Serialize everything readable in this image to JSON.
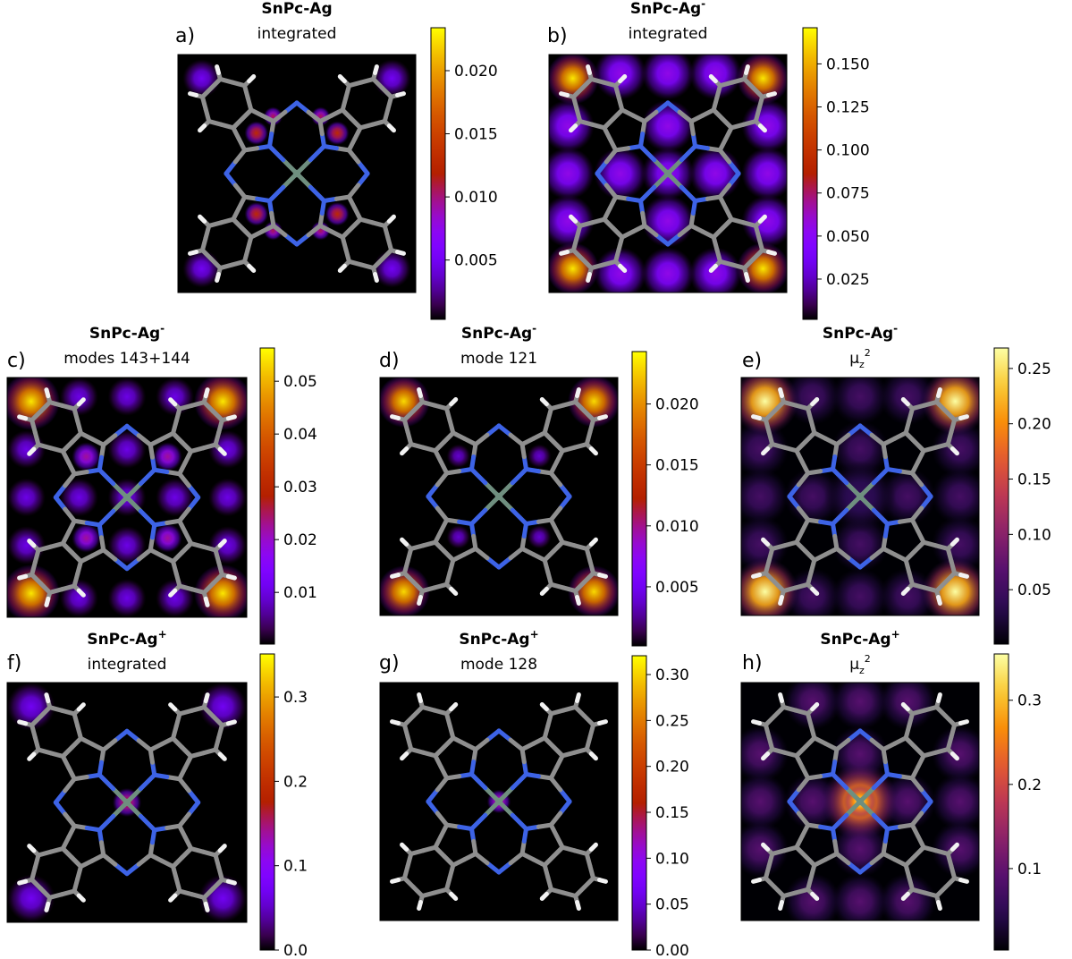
{
  "chart_data": [
    {
      "type": "heatmap",
      "panel_label": "a)",
      "title": "SnPc-Ag",
      "subtitle": "integrated",
      "colormap": "gnuplot",
      "clim": [
        0.0003,
        0.0234
      ],
      "cticks": [
        {
          "value": 0.02,
          "label": "0.020"
        },
        0.015,
        {
          "value": 0.01,
          "label": "0.010"
        },
        0.005
      ]
    },
    {
      "type": "heatmap",
      "panel_label": "b)",
      "title": "SnPc-Ag",
      "title_sup": "-",
      "subtitle": "integrated",
      "colormap": "gnuplot",
      "clim": [
        0.0016,
        0.171
      ],
      "cticks": [
        {
          "value": 0.15,
          "label": "0.150"
        },
        0.125,
        {
          "value": 0.1,
          "label": "0.100"
        },
        0.075,
        {
          "value": 0.05,
          "label": "0.050"
        },
        0.025
      ]
    },
    {
      "type": "heatmap",
      "panel_label": "c)",
      "title": "SnPc-Ag",
      "title_sup": "-",
      "subtitle": "modes 143+144",
      "colormap": "gnuplot",
      "clim": [
        0.0002,
        0.0563
      ],
      "cticks": [
        0.05,
        0.04,
        0.03,
        0.02,
        0.01
      ]
    },
    {
      "type": "heatmap",
      "panel_label": "d)",
      "title": "SnPc-Ag",
      "title_sup": "-",
      "subtitle": "mode 121",
      "colormap": "gnuplot",
      "clim": [
        0.00015,
        0.0243
      ],
      "cticks": [
        {
          "value": 0.02,
          "label": "0.020"
        },
        0.015,
        {
          "value": 0.01,
          "label": "0.010"
        },
        0.005
      ]
    },
    {
      "type": "heatmap",
      "panel_label": "e)",
      "title": "SnPc-Ag",
      "title_sup": "-",
      "subtitle": "μ",
      "subtitle_sub": "z",
      "subtitle_sup": "2",
      "colormap": "inferno",
      "clim": [
        0.0008,
        0.2685
      ],
      "cticks": [
        0.25,
        {
          "value": 0.2,
          "label": "0.20"
        },
        0.15,
        {
          "value": 0.1,
          "label": "0.10"
        },
        0.05
      ]
    },
    {
      "type": "heatmap",
      "panel_label": "f)",
      "title": "SnPc-Ag",
      "title_sup": "+",
      "subtitle": "integrated",
      "colormap": "gnuplot",
      "clim": [
        0,
        0.351
      ],
      "cticks": [
        {
          "value": 0,
          "label": "0.0"
        },
        0.1,
        0.2,
        0.3
      ]
    },
    {
      "type": "heatmap",
      "panel_label": "g)",
      "title": "SnPc-Ag",
      "title_sup": "+",
      "subtitle": "mode 128",
      "colormap": "gnuplot",
      "clim": [
        0,
        0.3205
      ],
      "cticks": [
        {
          "value": 0,
          "label": "0.00"
        },
        0.05,
        {
          "value": 0.1,
          "label": "0.10"
        },
        0.15,
        {
          "value": 0.2,
          "label": "0.20"
        },
        0.25,
        {
          "value": 0.3,
          "label": "0.30"
        }
      ]
    },
    {
      "type": "heatmap",
      "panel_label": "h)",
      "title": "SnPc-Ag",
      "title_sup": "+",
      "subtitle": "μ",
      "subtitle_sub": "z",
      "subtitle_sup": "2",
      "colormap": "inferno",
      "clim": [
        0.0032,
        0.355
      ],
      "cticks": [
        0.3,
        0.2,
        0.1
      ]
    }
  ]
}
